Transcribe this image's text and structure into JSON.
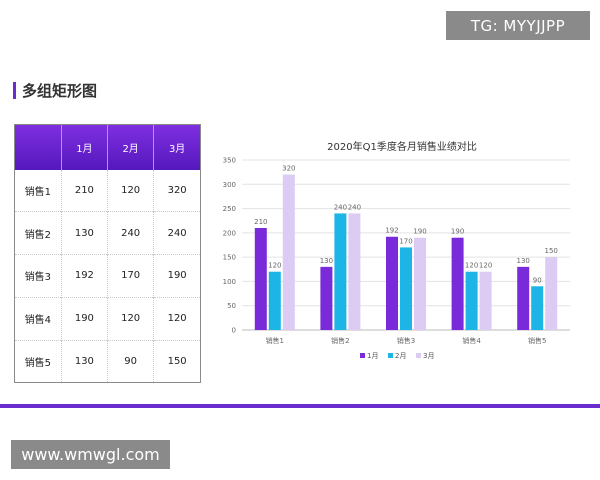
{
  "badge": "TG: MYYJJPP",
  "page_title": "多组矩形图",
  "watermark": "www.wmwgl.com",
  "colors": {
    "series1": "#7a2bd9",
    "series2": "#1cb5e5",
    "series3": "#dccbf3",
    "accent": "#6a2bcf"
  },
  "table": {
    "headers": [
      "",
      "1月",
      "2月",
      "3月"
    ],
    "rows": [
      {
        "label": "销售1",
        "values": [
          "210",
          "120",
          "320"
        ]
      },
      {
        "label": "销售2",
        "values": [
          "130",
          "240",
          "240"
        ]
      },
      {
        "label": "销售3",
        "values": [
          "192",
          "170",
          "190"
        ]
      },
      {
        "label": "销售4",
        "values": [
          "190",
          "120",
          "120"
        ]
      },
      {
        "label": "销售5",
        "values": [
          "130",
          "90",
          "150"
        ]
      }
    ]
  },
  "chart_data": {
    "type": "bar",
    "title": "2020年Q1季度各月销售业绩对比",
    "categories": [
      "销售1",
      "销售2",
      "销售3",
      "销售4",
      "销售5"
    ],
    "series": [
      {
        "name": "1月",
        "values": [
          210,
          130,
          192,
          190,
          130
        ]
      },
      {
        "name": "2月",
        "values": [
          120,
          240,
          170,
          120,
          90
        ]
      },
      {
        "name": "3月",
        "values": [
          320,
          240,
          190,
          120,
          150
        ]
      }
    ],
    "ylim": [
      0,
      350
    ],
    "yticks": [
      0,
      50,
      100,
      150,
      200,
      250,
      300,
      350
    ],
    "grid": true,
    "legend": "bottom",
    "data_labels": true
  }
}
